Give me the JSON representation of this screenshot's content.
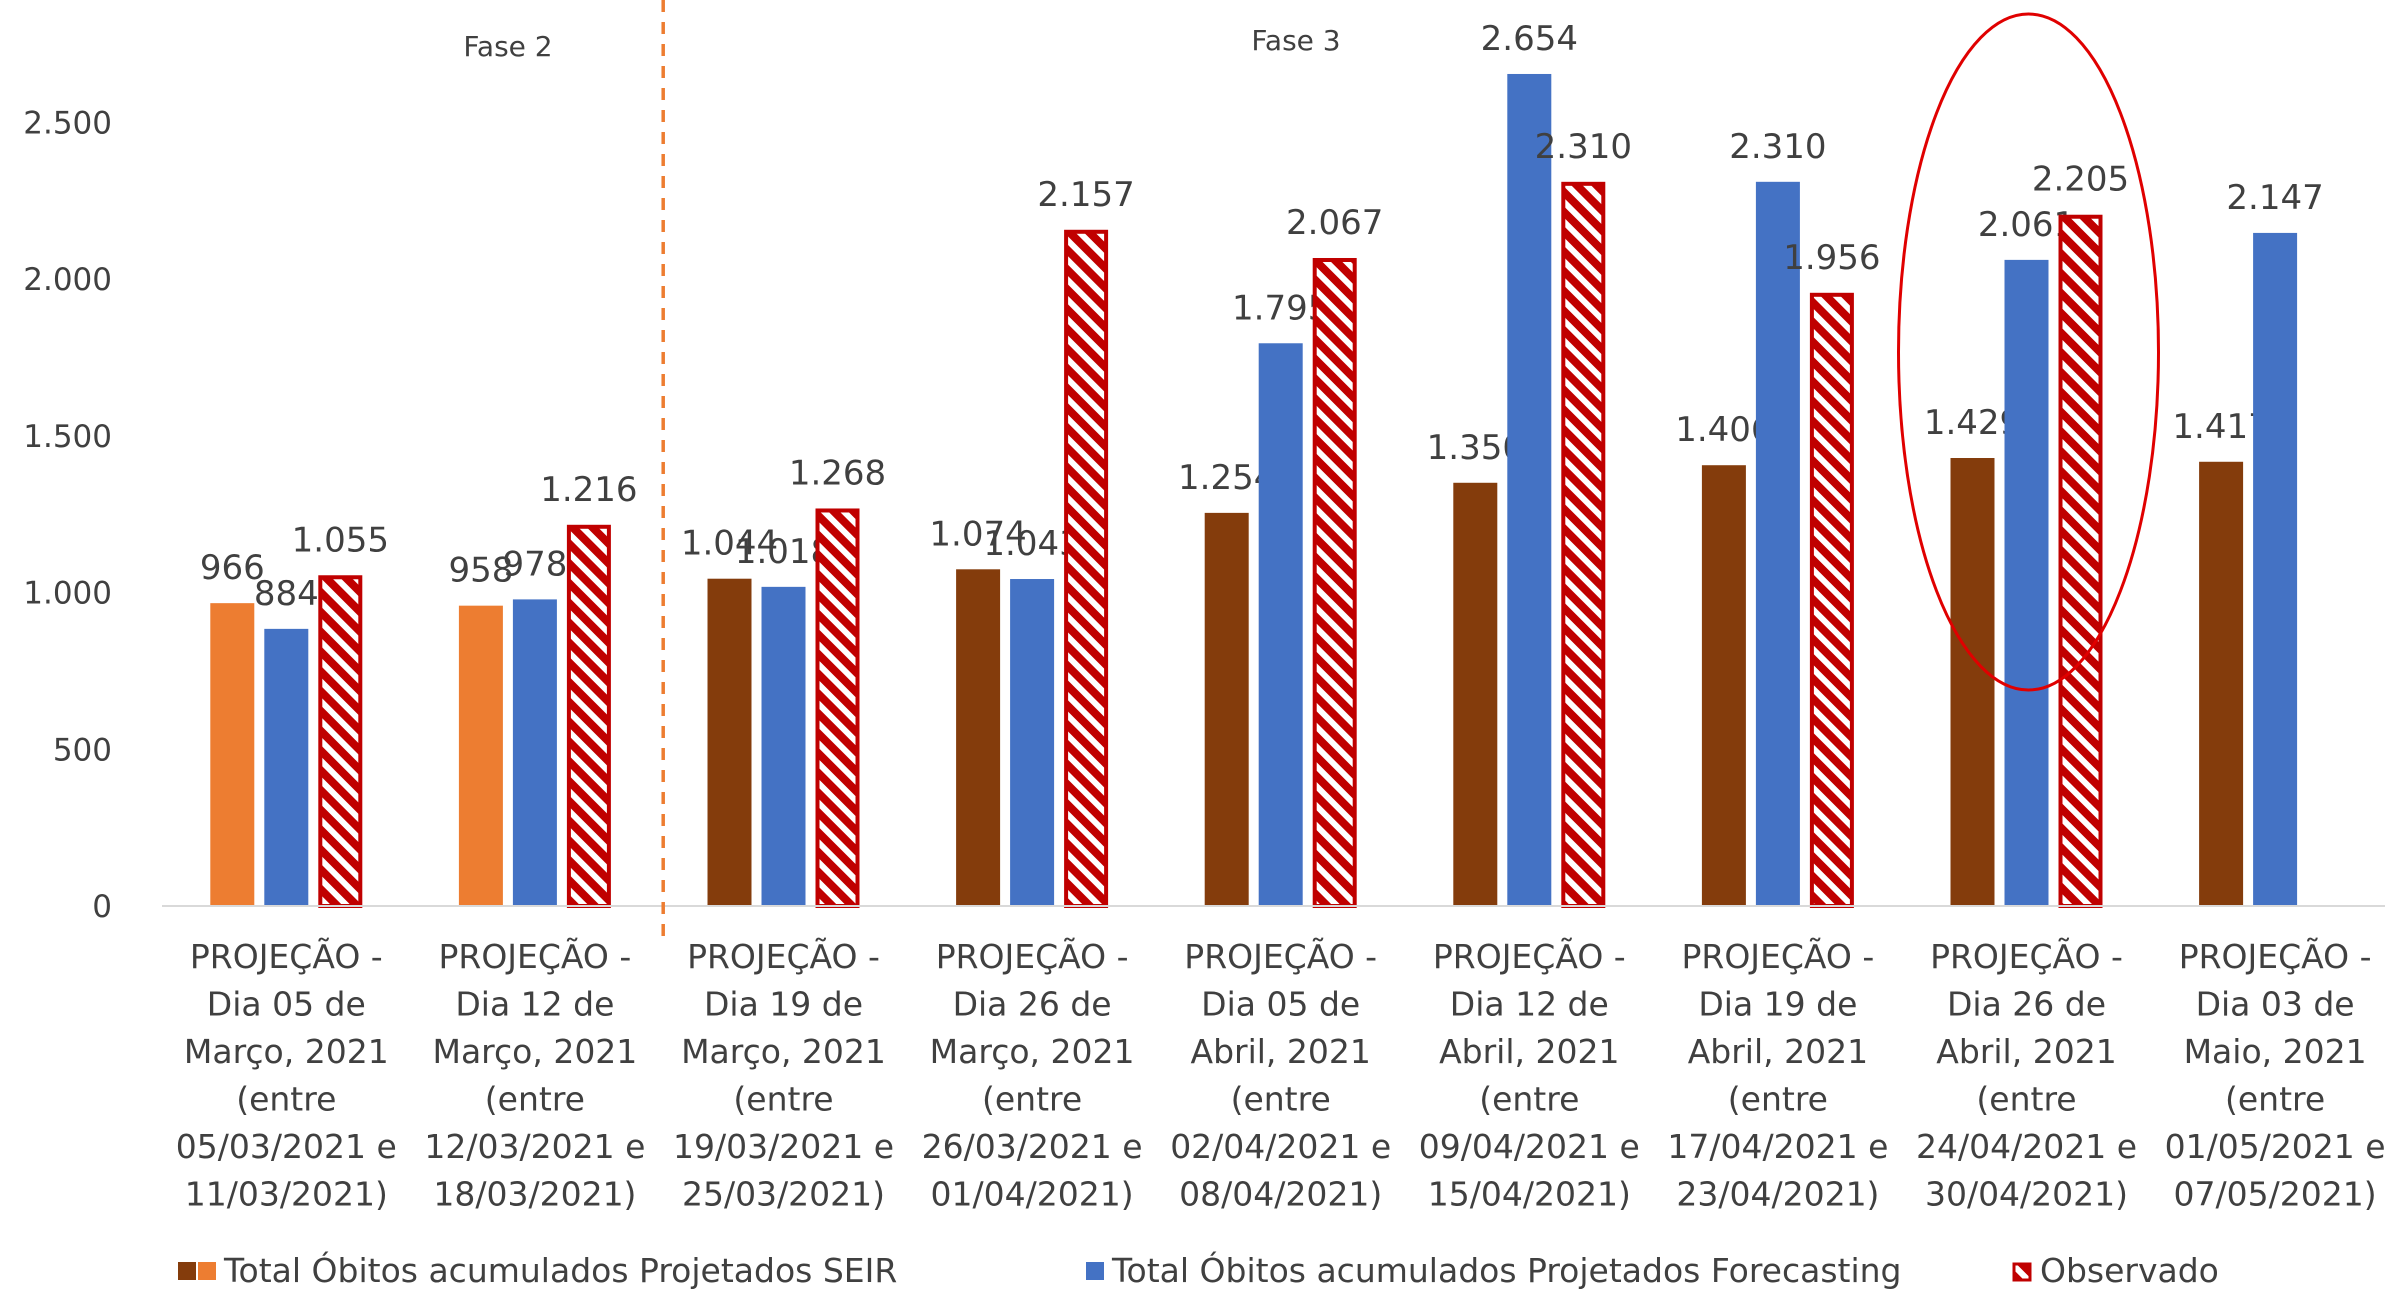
{
  "chart_data": {
    "type": "bar",
    "title": "",
    "xlabel": "",
    "ylabel": "",
    "ylim": [
      0,
      2800
    ],
    "yticks": [
      0,
      500,
      1000,
      1500,
      2000,
      2500
    ],
    "ytick_labels": [
      "0",
      "500",
      "1.000",
      "1.500",
      "2.000",
      "2.500"
    ],
    "grid": false,
    "legend_position": "bottom",
    "categories": [
      [
        "PROJEÇÃO -",
        "Dia 05 de",
        "Março, 2021",
        "(entre",
        "05/03/2021 e",
        "11/03/2021)"
      ],
      [
        "PROJEÇÃO -",
        "Dia 12 de",
        "Março, 2021",
        "(entre",
        "12/03/2021 e",
        "18/03/2021)"
      ],
      [
        "PROJEÇÃO -",
        "Dia 19 de",
        "Março, 2021",
        "(entre",
        "19/03/2021 e",
        "25/03/2021)"
      ],
      [
        "PROJEÇÃO -",
        "Dia 26 de",
        "Março, 2021",
        "(entre",
        "26/03/2021 e",
        "01/04/2021)"
      ],
      [
        "PROJEÇÃO -",
        "Dia 05 de",
        "Abril, 2021",
        "(entre",
        "02/04/2021 e",
        "08/04/2021)"
      ],
      [
        "PROJEÇÃO -",
        "Dia 12 de",
        "Abril, 2021",
        "(entre",
        "09/04/2021 e",
        "15/04/2021)"
      ],
      [
        "PROJEÇÃO -",
        "Dia 19 de",
        "Abril, 2021",
        "(entre",
        "17/04/2021 e",
        "23/04/2021)"
      ],
      [
        "PROJEÇÃO -",
        "Dia 26 de",
        "Abril, 2021",
        "(entre",
        "24/04/2021 e",
        "30/04/2021)"
      ],
      [
        "PROJEÇÃO -",
        "Dia 03 de",
        "Maio, 2021",
        "(entre",
        "01/05/2021 e",
        "07/05/2021)"
      ]
    ],
    "series": [
      {
        "name": "Total Óbitos acumulados Projetados  SEIR",
        "values": [
          966,
          958,
          1044,
          1074,
          1254,
          1350,
          1406,
          1429,
          1417
        ],
        "labels": [
          "966",
          "958",
          "1.044",
          "1.074",
          "1.254",
          "1.350",
          "1.406",
          "1.429",
          "1.417"
        ],
        "colors": [
          "#ED7D31",
          "#ED7D31",
          "#843C0C",
          "#843C0C",
          "#843C0C",
          "#843C0C",
          "#843C0C",
          "#843C0C",
          "#843C0C"
        ],
        "fill": "solid"
      },
      {
        "name": "Total Óbitos acumulados Projetados  Forecasting",
        "values": [
          884,
          978,
          1018,
          1043,
          1795,
          2654,
          2310,
          2061,
          2147
        ],
        "labels": [
          "884",
          "978",
          "1.018",
          "1.043",
          "1.795",
          "2.654",
          "2.310",
          "2.061",
          "2.147"
        ],
        "colors": [
          "#4472C4",
          "#4472C4",
          "#4472C4",
          "#4472C4",
          "#4472C4",
          "#4472C4",
          "#4472C4",
          "#4472C4",
          "#4472C4"
        ],
        "fill": "solid"
      },
      {
        "name": "Observado",
        "values": [
          1055,
          1216,
          1268,
          2157,
          2067,
          2310,
          1956,
          2205,
          null
        ],
        "labels": [
          "1.055",
          "1.216",
          "1.268",
          "2.157",
          "2.067",
          "2.310",
          "1.956",
          "2.205",
          ""
        ],
        "colors": [
          "#C00000",
          "#C00000",
          "#C00000",
          "#C00000",
          "#C00000",
          "#C00000",
          "#C00000",
          "#C00000",
          "#C00000"
        ],
        "fill": "hatched"
      }
    ],
    "annotations": {
      "phase_labels": [
        "Fase 2",
        "Fase 3"
      ],
      "phase_divider_between_categories": [
        1,
        2
      ],
      "phase_divider_color": "#ED7D31",
      "highlight_ellipse_category": 7,
      "highlight_color": "#E00000"
    }
  }
}
